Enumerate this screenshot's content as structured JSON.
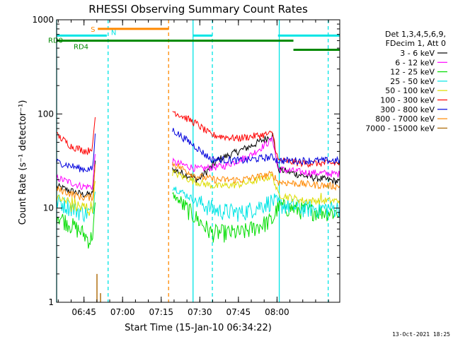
{
  "chart_data": {
    "type": "line",
    "title": "RHESSI Observing Summary Count Rates",
    "xlabel": "Start Time (15-Jan-10 06:34:22)",
    "ylabel": "Count Rate (s⁻¹ detector⁻¹)",
    "y_scale": "log",
    "ylim": [
      1,
      1000
    ],
    "xlim_minutes": [
      0,
      110
    ],
    "x_ticks": [
      {
        "t": 10.63,
        "label": "06:45"
      },
      {
        "t": 25.63,
        "label": "07:00"
      },
      {
        "t": 40.63,
        "label": "07:15"
      },
      {
        "t": 55.63,
        "label": "07:30"
      },
      {
        "t": 70.63,
        "label": "07:45"
      },
      {
        "t": 85.63,
        "label": "08:00"
      }
    ],
    "y_ticks": [
      {
        "v": 1,
        "label": "1"
      },
      {
        "v": 10,
        "label": "10"
      },
      {
        "v": 100,
        "label": "100"
      },
      {
        "v": 1000,
        "label": "1000"
      }
    ],
    "legend_header": [
      "Det 1,3,4,5,6,9,",
      "FDecim 1, Att 0"
    ],
    "legend_placement": "right",
    "flags": {
      "RD0": {
        "label": "RD0",
        "color": "#008800",
        "level": 600,
        "segments": [
          [
            0,
            92
          ]
        ]
      },
      "RD4": {
        "label": "RD4",
        "color": "#008800",
        "level": 480,
        "segments": [
          [
            92,
            110
          ]
        ]
      },
      "S": {
        "label": "S",
        "color": "#ff8800",
        "level": 800,
        "segments": [
          [
            16,
            43.5
          ]
        ]
      },
      "N": {
        "label": "N",
        "color": "#00e5e5",
        "level": 680,
        "segments": [
          [
            0,
            19.5
          ],
          [
            53,
            60.5
          ],
          [
            86,
            110
          ]
        ]
      }
    },
    "vlines": [
      {
        "t": 0,
        "color": "#00e5e5",
        "style": "solid"
      },
      {
        "t": 20,
        "color": "#00e5e5",
        "style": "dashed"
      },
      {
        "t": 43.5,
        "color": "#ff8800",
        "style": "dashed"
      },
      {
        "t": 53,
        "color": "#00e5e5",
        "style": "solid"
      },
      {
        "t": 60.5,
        "color": "#00e5e5",
        "style": "dashed"
      },
      {
        "t": 86.5,
        "color": "#00e5e5",
        "style": "solid"
      },
      {
        "t": 105.5,
        "color": "#00e5e5",
        "style": "dashed"
      }
    ],
    "spike": {
      "band": "7000 - 15000 keV",
      "t": 16.5,
      "color": "#aa6600"
    },
    "series": [
      {
        "name": "3 - 6 keV",
        "color": "#000000",
        "seg1": [
          [
            0,
            17
          ],
          [
            10,
            14
          ],
          [
            14,
            14
          ],
          [
            15,
            30
          ]
        ],
        "seg2": [
          [
            45,
            26
          ],
          [
            55,
            20
          ],
          [
            63,
            33
          ],
          [
            75,
            45
          ],
          [
            84,
            60
          ],
          [
            86,
            26
          ],
          [
            96,
            22
          ],
          [
            110,
            19
          ]
        ]
      },
      {
        "name": "6 - 12 keV",
        "color": "#ff00ff",
        "seg1": [
          [
            0,
            21
          ],
          [
            10,
            17
          ],
          [
            14,
            17
          ],
          [
            15,
            38
          ]
        ],
        "seg2": [
          [
            45,
            31
          ],
          [
            55,
            26
          ],
          [
            65,
            28
          ],
          [
            75,
            36
          ],
          [
            84,
            54
          ],
          [
            86,
            26
          ],
          [
            96,
            24
          ],
          [
            110,
            23
          ]
        ]
      },
      {
        "name": "12 - 25 keV",
        "color": "#00dd00",
        "seg1": [
          [
            0,
            8.5
          ],
          [
            10,
            5.5
          ],
          [
            13,
            4.5
          ],
          [
            14,
            5.5
          ],
          [
            15,
            10
          ]
        ],
        "seg2": [
          [
            45,
            14
          ],
          [
            54,
            8
          ],
          [
            60,
            5.5
          ],
          [
            72,
            5.5
          ],
          [
            84,
            7.5
          ],
          [
            86,
            10.5
          ],
          [
            96,
            9.5
          ],
          [
            110,
            9
          ]
        ]
      },
      {
        "name": "25 - 50 keV",
        "color": "#00e5e5",
        "seg1": [
          [
            0,
            12
          ],
          [
            10,
            9
          ],
          [
            14,
            9
          ],
          [
            15,
            16
          ]
        ],
        "seg2": [
          [
            45,
            17
          ],
          [
            54,
            12
          ],
          [
            62,
            9.5
          ],
          [
            72,
            9
          ],
          [
            84,
            12
          ],
          [
            86,
            11
          ],
          [
            96,
            10
          ],
          [
            110,
            10
          ]
        ]
      },
      {
        "name": "50 - 100 keV",
        "color": "#dddd00",
        "seg1": [
          [
            0,
            13
          ],
          [
            10,
            10
          ],
          [
            14,
            10
          ],
          [
            15,
            20
          ]
        ],
        "seg2": [
          [
            45,
            24
          ],
          [
            54,
            19
          ],
          [
            62,
            17
          ],
          [
            72,
            18
          ],
          [
            84,
            22
          ],
          [
            86,
            14
          ],
          [
            96,
            12
          ],
          [
            110,
            12
          ]
        ]
      },
      {
        "name": "100 - 300 keV",
        "color": "#ff0000",
        "seg1": [
          [
            0,
            60
          ],
          [
            6,
            45
          ],
          [
            12,
            40
          ],
          [
            14,
            45
          ],
          [
            15,
            92
          ]
        ],
        "seg2": [
          [
            45,
            108
          ],
          [
            54,
            80
          ],
          [
            60,
            60
          ],
          [
            70,
            55
          ],
          [
            84,
            62
          ],
          [
            86,
            32
          ],
          [
            96,
            30
          ],
          [
            110,
            30
          ]
        ]
      },
      {
        "name": "300 - 800 keV",
        "color": "#0000dd",
        "seg1": [
          [
            0,
            31
          ],
          [
            10,
            26
          ],
          [
            14,
            26
          ],
          [
            15,
            60
          ]
        ],
        "seg2": [
          [
            45,
            68
          ],
          [
            54,
            45
          ],
          [
            60,
            33
          ],
          [
            72,
            32
          ],
          [
            84,
            35
          ],
          [
            86,
            32
          ],
          [
            96,
            32
          ],
          [
            110,
            32
          ]
        ]
      },
      {
        "name": "800 - 7000 keV",
        "color": "#ff8800",
        "seg1": [
          [
            0,
            16
          ],
          [
            10,
            13
          ],
          [
            14,
            13
          ],
          [
            15,
            28
          ]
        ],
        "seg2": [
          [
            45,
            30
          ],
          [
            54,
            22
          ],
          [
            62,
            20
          ],
          [
            72,
            20
          ],
          [
            84,
            23
          ],
          [
            86,
            19
          ],
          [
            96,
            18
          ],
          [
            110,
            17
          ]
        ]
      },
      {
        "name": "7000 - 15000 keV",
        "color": "#aa6600",
        "seg1": [],
        "seg2": []
      }
    ]
  },
  "footer": {
    "timestamp": "13-Oct-2021 18:25"
  }
}
